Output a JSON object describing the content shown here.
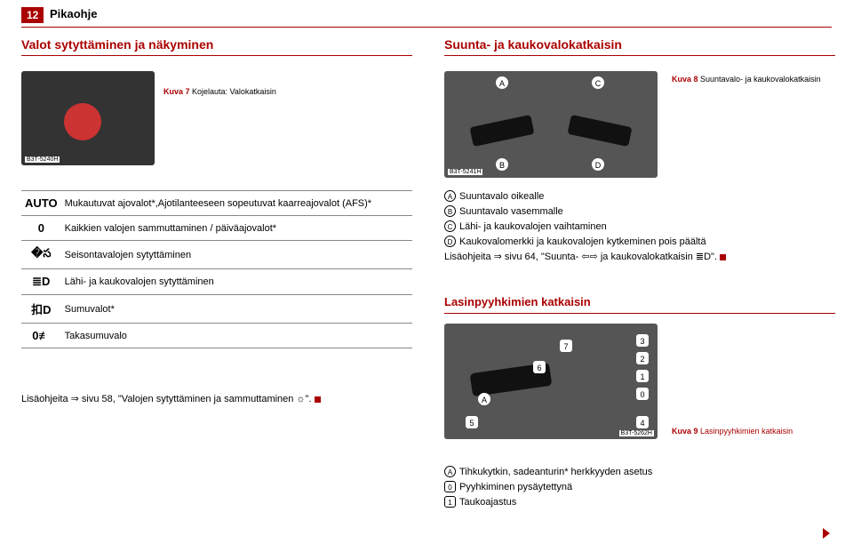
{
  "page_number": "12",
  "section_name": "Pikaohje",
  "heading_left": "Valot sytyttäminen ja näkyminen",
  "heading_right": "Suunta- ja kaukovalokatkaisin",
  "fig7": {
    "tag": "B3T-5240H",
    "num": "Kuva 7",
    "cap": "Kojelauta: Valokatkaisin"
  },
  "fig8": {
    "tag": "B3T-5241H",
    "num": "Kuva 8",
    "cap": "Suuntavalo- ja kaukovalokatkaisin",
    "labels": {
      "A": "A",
      "B": "B",
      "C": "C",
      "D": "D"
    }
  },
  "table_rows": [
    {
      "icon": "AUTO",
      "text": "Mukautuvat ajovalot*,Ajotilanteeseen sopeutuvat kaarreajovalot (AFS)*"
    },
    {
      "icon": "0",
      "text": "Kaikkien valojen sammuttaminen / päiväajovalot*"
    },
    {
      "icon": "�స",
      "text": "Seisontavalojen sytyttäminen"
    },
    {
      "icon": "≣D",
      "text": "Lähi- ja kaukovalojen sytyttäminen"
    },
    {
      "icon": "扣D",
      "text": "Sumuvalot*"
    },
    {
      "icon": "0≢",
      "text": "Takasumuvalo"
    }
  ],
  "note_left_prefix": "Lisäohjeita ⇒ sivu 58, \"Valojen sytyttäminen ja sammuttaminen ☼\".",
  "list_right": [
    {
      "k": "A",
      "t": "Suuntavalo oikealle"
    },
    {
      "k": "B",
      "t": "Suuntavalo vasemmalle"
    },
    {
      "k": "C",
      "t": "Lähi- ja kaukovalojen vaihtaminen"
    },
    {
      "k": "D",
      "t": "Kaukovalomerkki ja kaukovalojen kytkeminen pois päältä"
    }
  ],
  "note_right": "Lisäohjeita ⇒ sivu 64, \"Suunta- ⇦⇨ ja kaukovalokatkaisin ≣D\".",
  "heading_right2": "Lasinpyyhkimien katkaisin",
  "fig9": {
    "tag": "B3T-5262H",
    "num": "Kuva 9",
    "cap": "Lasinpyyhkimien katkaisin",
    "labels": {
      "A": "A",
      "n0": "0",
      "n1": "1",
      "n2": "2",
      "n3": "3",
      "n4": "4",
      "n5": "5",
      "n6": "6",
      "n7": "7"
    }
  },
  "list_right2": [
    {
      "k": "A",
      "t": "Tihkukytkin, sadeanturin* herkkyyden asetus",
      "circle": true
    },
    {
      "k": "0",
      "t": "Pyyhkiminen pysäytettynä",
      "circle": false
    },
    {
      "k": "1",
      "t": "Taukoajastus",
      "circle": false
    }
  ]
}
